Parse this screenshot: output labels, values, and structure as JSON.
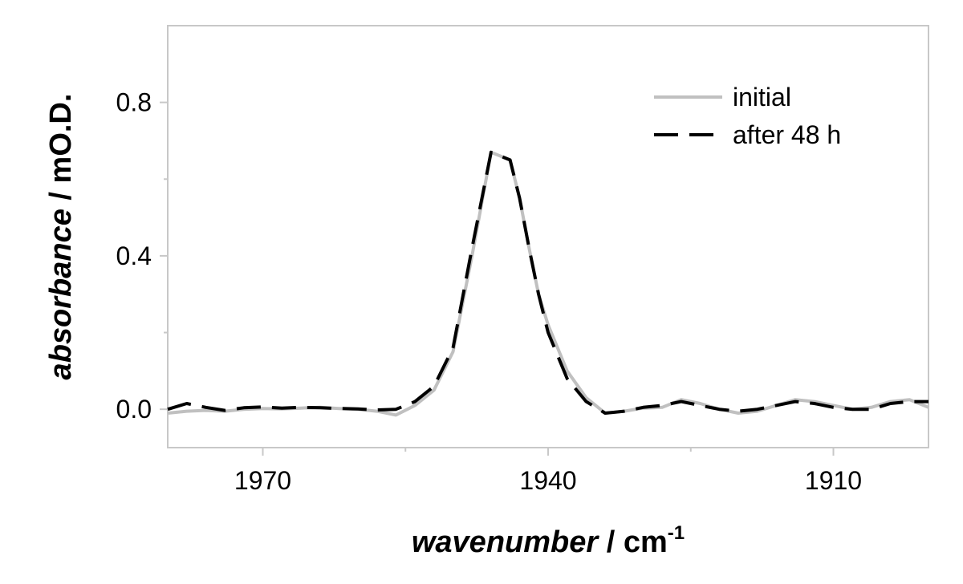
{
  "chart_data": {
    "type": "line",
    "title": "",
    "xlabel_main": "wavenumber",
    "xlabel_unit": " / cm",
    "xlabel_sup": "-1",
    "ylabel_main": "absorbance",
    "ylabel_unit": " / mO.D.",
    "xlim": [
      1980,
      1900
    ],
    "ylim": [
      -0.1,
      1.0
    ],
    "x_ticks": [
      1970,
      1940,
      1910
    ],
    "x_tick_labels": [
      "1970",
      "1940",
      "1910"
    ],
    "y_ticks": [
      0.0,
      0.4,
      0.8
    ],
    "y_tick_labels": [
      "0.0",
      "0.4",
      "0.8"
    ],
    "grid": false,
    "legend_position": "top-right",
    "series": [
      {
        "name": "initial",
        "color": "#c0c0c0",
        "style": "solid",
        "x": [
          1980,
          1978,
          1976,
          1974,
          1972,
          1970,
          1968,
          1966,
          1964,
          1962,
          1960,
          1958,
          1956,
          1954,
          1952,
          1950,
          1948,
          1946,
          1944,
          1943,
          1942,
          1941,
          1940,
          1938,
          1936,
          1934,
          1932,
          1930,
          1928,
          1926,
          1924,
          1922,
          1920,
          1918,
          1916,
          1914,
          1912,
          1910,
          1908,
          1906,
          1904,
          1902,
          1900
        ],
        "y": [
          -0.01,
          -0.005,
          -0.003,
          -0.005,
          0.0,
          0.002,
          0.001,
          0.003,
          0.005,
          0.002,
          0.0,
          -0.005,
          -0.015,
          0.01,
          0.05,
          0.15,
          0.4,
          0.67,
          0.65,
          0.55,
          0.42,
          0.3,
          0.22,
          0.1,
          0.03,
          -0.01,
          -0.005,
          0.003,
          0.005,
          0.025,
          0.015,
          0.0,
          -0.01,
          -0.005,
          0.01,
          0.025,
          0.02,
          0.01,
          0.0,
          0.005,
          0.02,
          0.025,
          0.005
        ]
      },
      {
        "name": "after 48 h",
        "color": "#000000",
        "style": "dashed",
        "x": [
          1980,
          1978,
          1976,
          1974,
          1972,
          1970,
          1968,
          1966,
          1964,
          1962,
          1960,
          1958,
          1956,
          1954,
          1952,
          1950,
          1948,
          1946,
          1944,
          1943,
          1942,
          1941,
          1940,
          1938,
          1936,
          1934,
          1932,
          1930,
          1928,
          1926,
          1924,
          1922,
          1920,
          1918,
          1916,
          1914,
          1912,
          1910,
          1908,
          1906,
          1904,
          1902,
          1900
        ],
        "y": [
          0.0,
          0.015,
          0.005,
          -0.003,
          0.004,
          0.006,
          0.003,
          0.005,
          0.004,
          0.002,
          0.001,
          -0.002,
          0.0,
          0.02,
          0.06,
          0.16,
          0.42,
          0.67,
          0.65,
          0.55,
          0.42,
          0.3,
          0.2,
          0.08,
          0.02,
          -0.01,
          -0.005,
          0.005,
          0.01,
          0.02,
          0.01,
          0.0,
          -0.005,
          0.0,
          0.01,
          0.02,
          0.015,
          0.005,
          0.0,
          0.0,
          0.015,
          0.02,
          0.02
        ]
      }
    ]
  }
}
